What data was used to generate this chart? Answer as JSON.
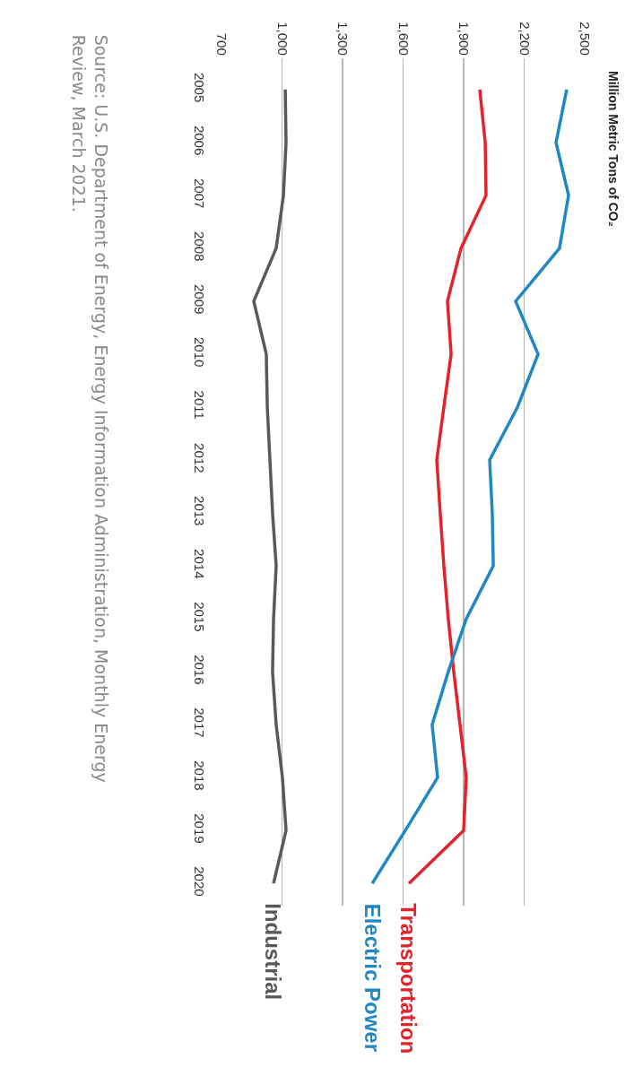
{
  "chart_data": {
    "type": "line",
    "orientation": "horizontal",
    "title": "Million Metric Tons of CO₂",
    "categories": [
      "2005",
      "2006",
      "2007",
      "2008",
      "2009",
      "2010",
      "2011",
      "2012",
      "2013",
      "2014",
      "2015",
      "2016",
      "2017",
      "2018",
      "2019",
      "2020"
    ],
    "series": [
      {
        "name": "Transportation",
        "color": "#e3232c",
        "values": [
          1980,
          2007,
          2011,
          1887,
          1820,
          1838,
          1802,
          1767,
          1784,
          1802,
          1824,
          1851,
          1882,
          1913,
          1900,
          1629
        ]
      },
      {
        "name": "Electric Power",
        "color": "#1f88c4",
        "values": [
          2411,
          2358,
          2420,
          2375,
          2158,
          2269,
          2167,
          2029,
          2042,
          2047,
          1913,
          1824,
          1744,
          1771,
          1611,
          1447
        ]
      },
      {
        "name": "Industrial",
        "color": "#58595b",
        "values": [
          1016,
          1020,
          1007,
          971,
          860,
          922,
          927,
          940,
          953,
          971,
          958,
          953,
          971,
          1002,
          1020,
          958
        ]
      }
    ],
    "xlim": [
      700,
      2500
    ],
    "xticks": [
      700,
      {
        "value": 1000,
        "label": "1,000"
      },
      {
        "value": 1300,
        "label": "1,300"
      },
      {
        "value": 1600,
        "label": "1,600"
      },
      {
        "value": 1900,
        "label": "1,900"
      },
      {
        "value": 2200,
        "label": "2,200"
      },
      {
        "value": 2500,
        "label": "2,500"
      }
    ],
    "grid": "x",
    "legend": false,
    "marker": "none",
    "line_style": "solid",
    "annotations": [
      "Source: U.S. Department of Energy, Energy Information Administration, Monthly Energy\nReview, March 2021."
    ]
  }
}
